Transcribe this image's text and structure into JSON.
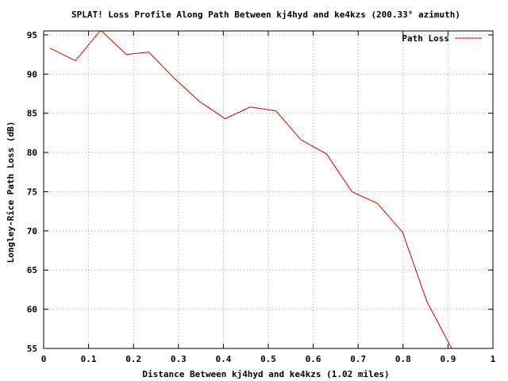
{
  "chart_data": {
    "type": "line",
    "title": "SPLAT! Loss Profile Along Path Between kj4hyd and ke4kzs (200.33° azimuth)",
    "xlabel": "Distance Between kj4hyd and ke4kzs (1.02 miles)",
    "ylabel": "Longley-Rice Path Loss (dB)",
    "xlim": [
      0,
      1
    ],
    "ylim": [
      55,
      95.5
    ],
    "x_ticks": [
      "0",
      "0.1",
      "0.2",
      "0.3",
      "0.4",
      "0.5",
      "0.6",
      "0.7",
      "0.8",
      "0.9",
      "1"
    ],
    "y_ticks": [
      "55",
      "60",
      "65",
      "70",
      "75",
      "80",
      "85",
      "90",
      "95"
    ],
    "grid": true,
    "legend_position": "top-right",
    "series": [
      {
        "name": "Path Loss",
        "color": "#cc0000",
        "x": [
          0.014,
          0.071,
          0.127,
          0.184,
          0.234,
          0.29,
          0.347,
          0.404,
          0.46,
          0.517,
          0.573,
          0.63,
          0.686,
          0.743,
          0.799,
          0.853,
          0.91
        ],
        "y": [
          93.3,
          91.7,
          95.6,
          92.5,
          92.8,
          89.5,
          86.5,
          84.3,
          85.8,
          85.3,
          81.6,
          79.8,
          75.0,
          73.5,
          69.8,
          61.0,
          54.8
        ]
      }
    ]
  }
}
